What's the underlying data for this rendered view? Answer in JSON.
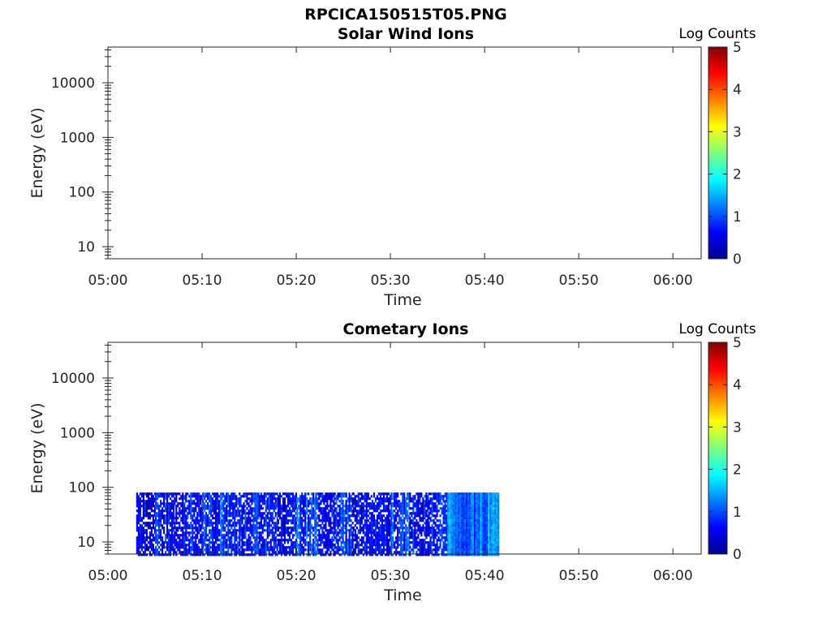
{
  "figure": {
    "title": "RPCICA150515T05.PNG"
  },
  "colormap": [
    "#00008f",
    "#0000ff",
    "#00ffff",
    "#ffff00",
    "#ff0000",
    "#800000"
  ],
  "chart_data": [
    {
      "type": "heatmap",
      "title": "Solar Wind Ions",
      "xlabel": "Time",
      "ylabel": "Energy (eV)",
      "x_ticks": [
        "05:00",
        "05:10",
        "05:20",
        "05:30",
        "05:40",
        "05:50",
        "06:00"
      ],
      "xlim": [
        "05:00",
        "06:03"
      ],
      "y_scale": "log",
      "y_ticks": [
        "10",
        "100",
        "1000",
        "10000"
      ],
      "ylim": [
        6,
        45000
      ],
      "colorbar": {
        "label": "Log Counts",
        "ticks": [
          "0",
          "1",
          "2",
          "3",
          "4",
          "5"
        ],
        "range": [
          0,
          5
        ]
      },
      "data_segments": []
    },
    {
      "type": "heatmap",
      "title": "Cometary Ions",
      "xlabel": "Time",
      "ylabel": "Energy (eV)",
      "x_ticks": [
        "05:00",
        "05:10",
        "05:20",
        "05:30",
        "05:40",
        "05:50",
        "06:00"
      ],
      "xlim": [
        "05:00",
        "06:03"
      ],
      "y_scale": "log",
      "y_ticks": [
        "10",
        "100",
        "1000",
        "10000"
      ],
      "ylim": [
        6,
        45000
      ],
      "colorbar": {
        "label": "Log Counts",
        "ticks": [
          "0",
          "1",
          "2",
          "3",
          "4",
          "5"
        ],
        "range": [
          0,
          5
        ]
      },
      "energy_range": [
        6,
        80
      ],
      "data_segments": [
        {
          "start": "05:03",
          "end": "05:05",
          "log_counts": 0.4
        },
        {
          "start": "05:05",
          "end": "05:07",
          "log_counts": 0.8
        },
        {
          "start": "05:07",
          "end": "05:10",
          "log_counts": 0.6
        },
        {
          "start": "05:10",
          "end": "05:12",
          "log_counts": 0.9
        },
        {
          "start": "05:12",
          "end": "05:14",
          "log_counts": 0.7
        },
        {
          "start": "05:14",
          "end": "05:16",
          "log_counts": 0.6
        },
        {
          "start": "05:16",
          "end": "05:18",
          "log_counts": 0.8
        },
        {
          "start": "05:18",
          "end": "05:20",
          "log_counts": 0.5
        },
        {
          "start": "05:20",
          "end": "05:22",
          "log_counts": 0.9
        },
        {
          "start": "05:22",
          "end": "05:24",
          "log_counts": 0.6
        },
        {
          "start": "05:24",
          "end": "05:26",
          "log_counts": 0.8
        },
        {
          "start": "05:26",
          "end": "05:28",
          "log_counts": 0.5
        },
        {
          "start": "05:28",
          "end": "05:30",
          "log_counts": 0.7
        },
        {
          "start": "05:30",
          "end": "05:32",
          "log_counts": 0.9
        },
        {
          "start": "05:32",
          "end": "05:34",
          "log_counts": 0.6
        },
        {
          "start": "05:34",
          "end": "05:36",
          "log_counts": 0.8
        },
        {
          "start": "05:36",
          "end": "05:37",
          "log_counts": 1.5
        },
        {
          "start": "05:37",
          "end": "05:38",
          "log_counts": 1.2
        },
        {
          "start": "05:38",
          "end": "05:39",
          "log_counts": 1.1
        },
        {
          "start": "05:39",
          "end": "05:40",
          "log_counts": 1.3
        },
        {
          "start": "05:40",
          "end": "05:41.5",
          "log_counts": 1.4
        }
      ]
    }
  ]
}
